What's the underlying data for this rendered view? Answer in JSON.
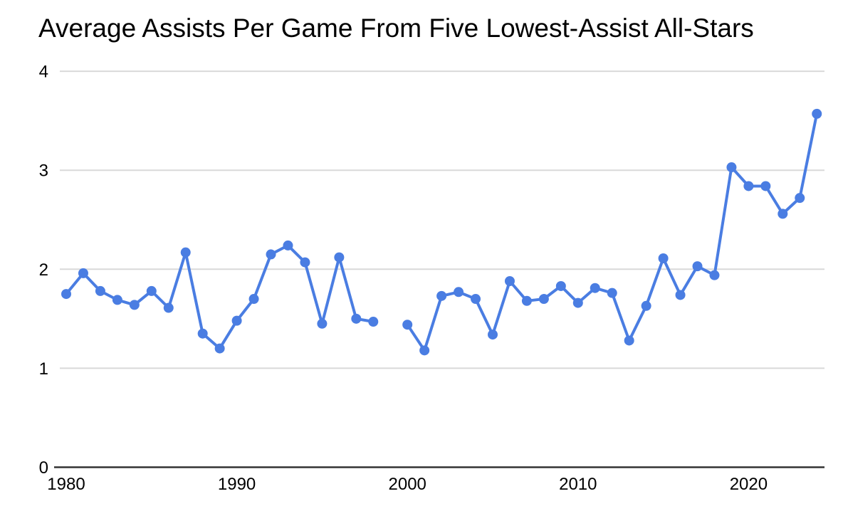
{
  "title": "Average Assists Per Game From Five Lowest-Assist All-Stars",
  "chart_data": {
    "type": "line",
    "title": "Average Assists Per Game From Five Lowest-Assist All-Stars",
    "x": [
      1980,
      1981,
      1982,
      1983,
      1984,
      1985,
      1986,
      1987,
      1988,
      1989,
      1990,
      1991,
      1992,
      1993,
      1994,
      1995,
      1996,
      1997,
      1998,
      1999,
      2000,
      2001,
      2002,
      2003,
      2004,
      2005,
      2006,
      2007,
      2008,
      2009,
      2010,
      2011,
      2012,
      2013,
      2014,
      2015,
      2016,
      2017,
      2018,
      2019,
      2020,
      2021,
      2022,
      2023,
      2024
    ],
    "series": [
      {
        "name": "Average assists per game of five lowest-assist All-Stars",
        "values": [
          1.75,
          1.96,
          1.78,
          1.69,
          1.64,
          1.78,
          1.61,
          2.17,
          1.35,
          1.2,
          1.48,
          1.7,
          2.15,
          2.24,
          2.07,
          1.45,
          2.12,
          1.5,
          1.47,
          null,
          1.44,
          1.18,
          1.73,
          1.77,
          1.7,
          1.34,
          1.88,
          1.68,
          1.7,
          1.83,
          1.66,
          1.81,
          1.76,
          1.28,
          1.63,
          2.11,
          1.74,
          2.03,
          1.94,
          3.03,
          2.84,
          2.84,
          2.56,
          2.72,
          3.57
        ]
      }
    ],
    "gap_x": [
      1999
    ],
    "xlabel": "",
    "ylabel": "",
    "xlim": [
      1980,
      2024
    ],
    "ylim": [
      0,
      4
    ],
    "xticks": [
      1980,
      1990,
      2000,
      2010,
      2020
    ],
    "yticks": [
      0,
      1,
      2,
      3,
      4
    ],
    "grid": "horizontal",
    "legend_position": "none",
    "marker": "circle",
    "colors": {
      "line": "#4a7de2",
      "marker": "#4a7de2",
      "gridline": "#d9d9d9",
      "axis": "#333333",
      "text": "#000000",
      "background": "#ffffff"
    }
  }
}
